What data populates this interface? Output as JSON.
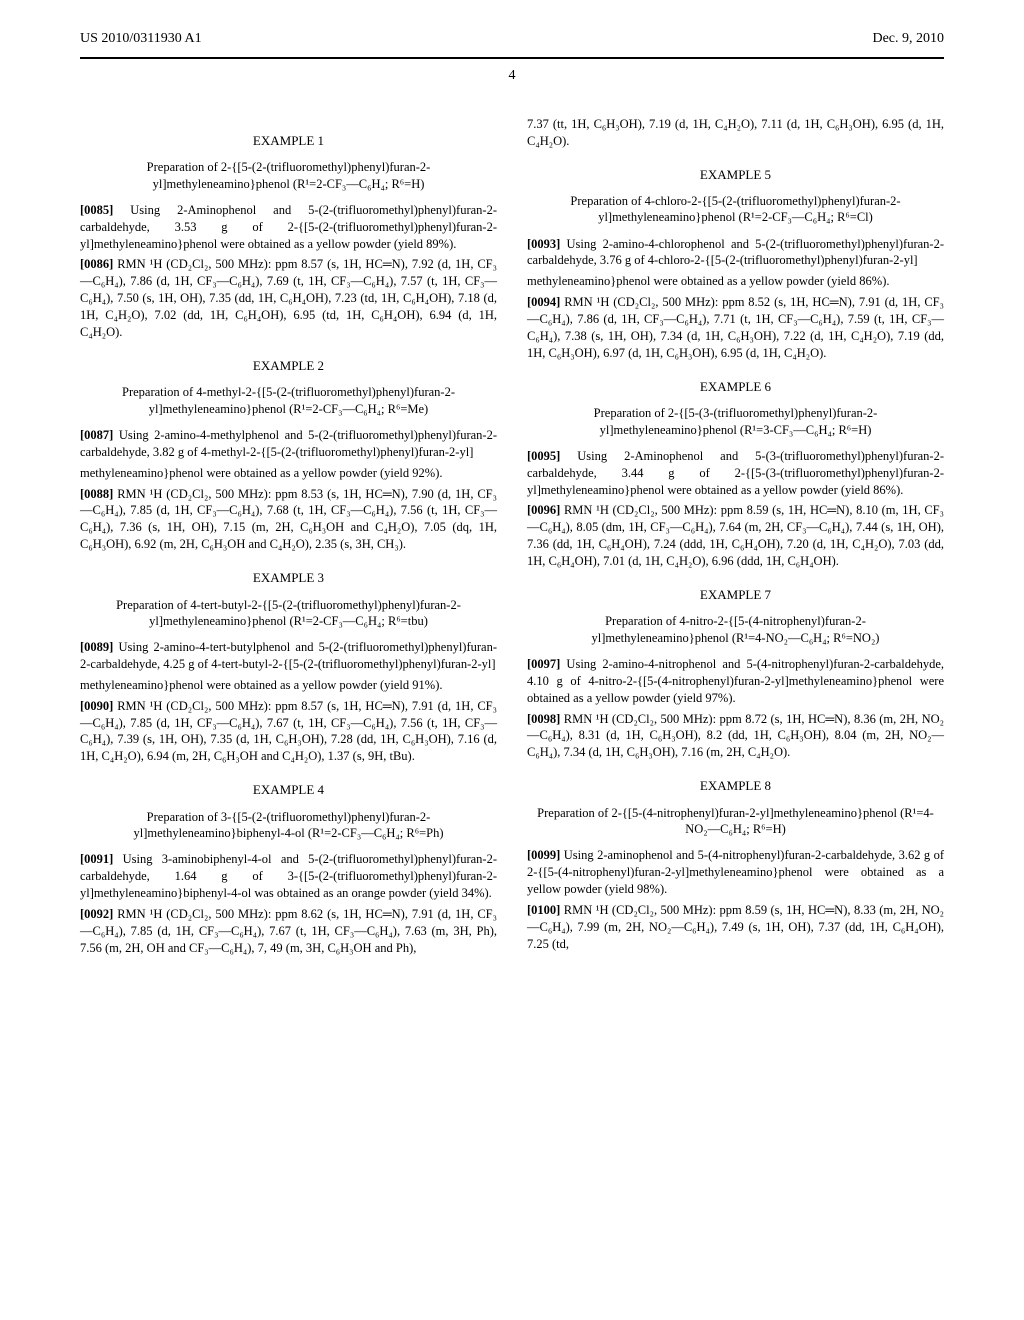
{
  "header": {
    "pub_number": "US 2010/0311930 A1",
    "date": "Dec. 9, 2010"
  },
  "page_number": "4",
  "left": {
    "ex1": {
      "title": "EXAMPLE 1",
      "subtitle": "Preparation of 2-{[5-(2-(trifluoromethyl)phenyl)furan-2-yl]methyleneamino}phenol (R¹=2-CF₃—C₆H₄; R⁶=H)",
      "p85_num": "[0085]",
      "p85": " Using 2-Aminophenol and 5-(2-(trifluoromethyl)phenyl)furan-2-carbaldehyde, 3.53 g of 2-{[5-(2-(trifluoromethyl)phenyl)furan-2-yl]methyleneamino}phenol were obtained as a yellow powder (yield 89%).",
      "p86_num": "[0086]",
      "p86": " RMN ¹H (CD₂Cl₂, 500 MHz): ppm 8.57 (s, 1H, HC═N), 7.92 (d, 1H, CF₃—C₆H₄), 7.86 (d, 1H, CF₃—C₆H₄), 7.69 (t, 1H, CF₃—C₆H₄), 7.57 (t, 1H, CF₃—C₆H₄), 7.50 (s, 1H, OH), 7.35 (dd, 1H, C₆H₄OH), 7.23 (td, 1H, C₆H₄OH), 7.18 (d, 1H, C₄H₂O), 7.02 (dd, 1H, C₆H₄OH), 6.95 (td, 1H, C₆H₄OH), 6.94 (d, 1H, C₄H₂O)."
    },
    "ex2": {
      "title": "EXAMPLE 2",
      "subtitle": "Preparation of 4-methyl-2-{[5-(2-(trifluoromethyl)phenyl)furan-2-yl]methyleneamino}phenol (R¹=2-CF₃—C₆H₄; R⁶=Me)",
      "p87_num": "[0087]",
      "p87": " Using 2-amino-4-methylphenol and 5-(2-(trifluoromethyl)phenyl)furan-2-carbaldehyde, 3.82 g of 4-methyl-2-{[5-(2-(trifluoromethyl)phenyl)furan-2-yl]",
      "p87b": "methyleneamino}phenol were obtained as a yellow powder (yield 92%).",
      "p88_num": "[0088]",
      "p88": " RMN ¹H (CD₂Cl₂, 500 MHz): ppm 8.53 (s, 1H, HC═N), 7.90 (d, 1H, CF₃—C₆H₄), 7.85 (d, 1H, CF₃—C₆H₄), 7.68 (t, 1H, CF₃—C₆H₄), 7.56 (t, 1H, CF₃—C₆H₄), 7.36 (s, 1H, OH), 7.15 (m, 2H, C₆H₃OH and C₄H₂O), 7.05 (dq, 1H, C₆H₃OH), 6.92 (m, 2H, C₆H₃OH and C₄H₂O), 2.35 (s, 3H, CH₃)."
    },
    "ex3": {
      "title": "EXAMPLE 3",
      "subtitle": "Preparation of 4-tert-butyl-2-{[5-(2-(trifluoromethyl)phenyl)furan-2-yl]methyleneamino}phenol (R¹=2-CF₃—C₆H₄; R⁶=tbu)",
      "p89_num": "[0089]",
      "p89": " Using 2-amino-4-tert-butylphenol and 5-(2-(trifluoromethyl)phenyl)furan-2-carbaldehyde, 4.25 g of 4-tert-butyl-2-{[5-(2-(trifluoromethyl)phenyl)furan-2-yl]",
      "p89b": "methyleneamino}phenol were obtained as a yellow powder (yield 91%).",
      "p90_num": "[0090]",
      "p90": " RMN ¹H (CD₂Cl₂, 500 MHz): ppm 8.57 (s, 1H, HC═N), 7.91 (d, 1H, CF₃—C₆H₄), 7.85 (d, 1H, CF₃—C₆H₄), 7.67 (t, 1H, CF₃—C₆H₄), 7.56 (t, 1H, CF₃—C₆H₄), 7.39 (s, 1H, OH), 7.35 (d, 1H, C₆H₃OH), 7.28 (dd, 1H, C₆H₃OH), 7.16 (d, 1H, C₄H₂O), 6.94 (m, 2H, C₆H₃OH and C₄H₂O), 1.37 (s, 9H, tBu)."
    },
    "ex4": {
      "title": "EXAMPLE 4",
      "subtitle": "Preparation of 3-{[5-(2-(trifluoromethyl)phenyl)furan-2-yl]methyleneamino}biphenyl-4-ol (R¹=2-CF₃—C₆H₄; R⁶=Ph)",
      "p91_num": "[0091]",
      "p91": " Using 3-aminobiphenyl-4-ol and 5-(2-(trifluoromethyl)phenyl)furan-2-carbaldehyde, 1.64 g of 3-{[5-(2-(trifluoromethyl)phenyl)furan-2-yl]methyleneamino}biphenyl-4-ol was obtained as an orange powder (yield 34%).",
      "p92_num": "[0092]",
      "p92": " RMN ¹H (CD₂Cl₂, 500 MHz): ppm 8.62 (s, 1H, HC═N), 7.91 (d, 1H, CF₃—C₆H₄), 7.85 (d, 1H, CF₃—C₆H₄), 7.67 (t, 1H, CF₃—C₆H₄), 7.63 (m, 3H, Ph), 7.56 (m, 2H, OH and CF₃—C₆H₄), 7, 49 (m, 3H, C₆H₃OH and Ph),"
    }
  },
  "right": {
    "p92_cont": "7.37 (tt, 1H, C₆H₃OH), 7.19 (d, 1H, C₄H₂O), 7.11 (d, 1H, C₆H₃OH), 6.95 (d, 1H, C₄H₂O).",
    "ex5": {
      "title": "EXAMPLE 5",
      "subtitle": "Preparation of 4-chloro-2-{[5-(2-(trifluoromethyl)phenyl)furan-2-yl]methyleneamino}phenol (R¹=2-CF₃—C₆H₄; R⁶=Cl)",
      "p93_num": "[0093]",
      "p93": " Using 2-amino-4-chlorophenol and 5-(2-(trifluoromethyl)phenyl)furan-2-carbaldehyde, 3.76 g of 4-chloro-2-{[5-(2-(trifluoromethyl)phenyl)furan-2-yl]",
      "p93b": "methyleneamino}phenol were obtained as a yellow powder (yield 86%).",
      "p94_num": "[0094]",
      "p94": " RMN ¹H (CD₂Cl₂, 500 MHz): ppm 8.52 (s, 1H, HC═N), 7.91 (d, 1H, CF₃—C₆H₄), 7.86 (d, 1H, CF₃—C₆H₄), 7.71 (t, 1H, CF₃—C₆H₄), 7.59 (t, 1H, CF₃—C₆H₄), 7.38 (s, 1H, OH), 7.34 (d, 1H, C₆H₃OH), 7.22 (d, 1H, C₄H₂O), 7.19 (dd, 1H, C₆H₃OH), 6.97 (d, 1H, C₆H₃OH), 6.95 (d, 1H, C₄H₂O)."
    },
    "ex6": {
      "title": "EXAMPLE 6",
      "subtitle": "Preparation of 2-{[5-(3-(trifluoromethyl)phenyl)furan-2-yl]methyleneamino}phenol (R¹=3-CF₃—C₆H₄; R⁶=H)",
      "p95_num": "[0095]",
      "p95": " Using 2-Aminophenol and 5-(3-(trifluoromethyl)phenyl)furan-2-carbaldehyde, 3.44 g of 2-{[5-(3-(trifluoromethyl)phenyl)furan-2-yl]methyleneamino}phenol were obtained as a yellow powder (yield 86%).",
      "p96_num": "[0096]",
      "p96": " RMN ¹H (CD₂Cl₂, 500 MHz): ppm 8.59 (s, 1H, HC═N), 8.10 (m, 1H, CF₃—C₆H₄), 8.05 (dm, 1H, CF₃—C₆H₄), 7.64 (m, 2H, CF₃—C₆H₄), 7.44 (s, 1H, OH), 7.36 (dd, 1H, C₆H₄OH), 7.24 (ddd, 1H, C₆H₄OH), 7.20 (d, 1H, C₄H₂O), 7.03 (dd, 1H, C₆H₄OH), 7.01 (d, 1H, C₄H₂O), 6.96 (ddd, 1H, C₆H₄OH)."
    },
    "ex7": {
      "title": "EXAMPLE 7",
      "subtitle": "Preparation of 4-nitro-2-{[5-(4-nitrophenyl)furan-2-yl]methyleneamino}phenol (R¹=4-NO₂—C₆H₄; R⁶=NO₂)",
      "p97_num": "[0097]",
      "p97": " Using 2-amino-4-nitrophenol and 5-(4-nitrophenyl)furan-2-carbaldehyde, 4.10 g of 4-nitro-2-{[5-(4-nitrophenyl)furan-2-yl]methyleneamino}phenol were obtained as a yellow powder (yield 97%).",
      "p98_num": "[0098]",
      "p98": " RMN ¹H (CD₂Cl₂, 500 MHz): ppm 8.72 (s, 1H, HC═N), 8.36 (m, 2H, NO₂—C₆H₄), 8.31 (d, 1H, C₆H₃OH), 8.2 (dd, 1H, C₆H₃OH), 8.04 (m, 2H, NO₂—C₆H₄), 7.34 (d, 1H, C₆H₃OH), 7.16 (m, 2H, C₄H₂O)."
    },
    "ex8": {
      "title": "EXAMPLE 8",
      "subtitle": "Preparation of 2-{[5-(4-nitrophenyl)furan-2-yl]methyleneamino}phenol (R¹=4-NO₂—C₆H₄; R⁶=H)",
      "p99_num": "[0099]",
      "p99": " Using 2-aminophenol and 5-(4-nitrophenyl)furan-2-carbaldehyde, 3.62 g of 2-{[5-(4-nitrophenyl)furan-2-yl]methyleneamino}phenol were obtained as a yellow powder (yield 98%).",
      "p100_num": "[0100]",
      "p100": " RMN ¹H (CD₂Cl₂, 500 MHz): ppm 8.59 (s, 1H, HC═N), 8.33 (m, 2H, NO₂—C₆H₄), 7.99 (m, 2H, NO₂—C₆H₄), 7.49 (s, 1H, OH), 7.37 (dd, 1H, C₆H₄OH), 7.25 (td,"
    }
  }
}
